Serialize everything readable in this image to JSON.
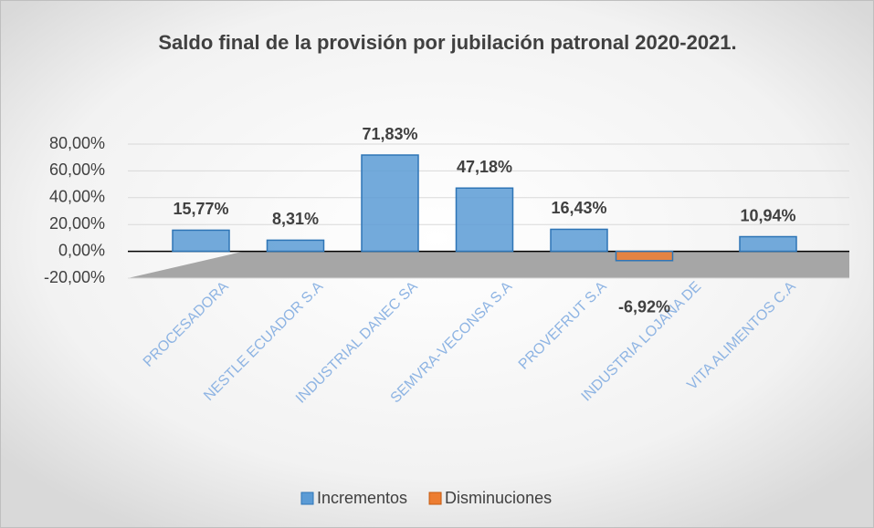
{
  "chart_data": {
    "type": "bar",
    "title": "Saldo final de la provisión por jubilación patronal 2020-2021.",
    "categories": [
      "PROCESADORA",
      "NESTLE ECUADOR S.A",
      "INDUSTRIAL DANEC SA",
      "SEMVRA-VECONSA S.A",
      "PROVEFRUT S.A",
      "INDUSTRIA LOJANA DE",
      "VITA ALIMENTOS C.A"
    ],
    "series": [
      {
        "name": "Incrementos",
        "color": "#5b9bd5",
        "values": [
          15.77,
          8.31,
          71.83,
          47.18,
          16.43,
          null,
          10.94
        ],
        "value_labels": [
          "15,77%",
          "8,31%",
          "71,83%",
          "47,18%",
          "16,43%",
          null,
          "10,94%"
        ]
      },
      {
        "name": "Disminuciones",
        "color": "#ed7d31",
        "values": [
          null,
          null,
          null,
          null,
          null,
          -6.92,
          null
        ],
        "value_labels": [
          null,
          null,
          null,
          null,
          null,
          "-6,92%",
          null
        ]
      }
    ],
    "ylim": [
      -20,
      80
    ],
    "yticks": [
      {
        "value": -20,
        "label": "-20,00%"
      },
      {
        "value": 0,
        "label": "0,00%"
      },
      {
        "value": 20,
        "label": "20,00%"
      },
      {
        "value": 40,
        "label": "40,00%"
      },
      {
        "value": 60,
        "label": "60,00%"
      },
      {
        "value": 80,
        "label": "80,00%"
      }
    ],
    "grid": true,
    "legend": "bottom"
  }
}
